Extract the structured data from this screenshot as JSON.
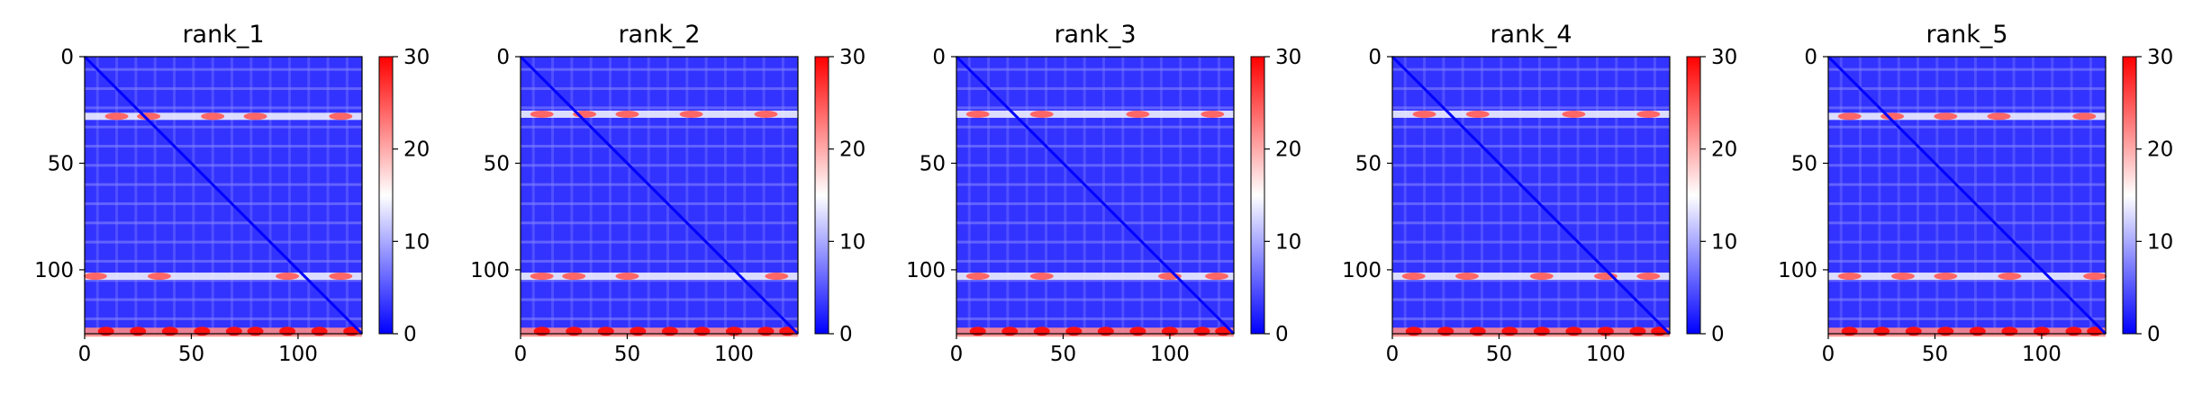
{
  "chart_data": [
    {
      "type": "heatmap",
      "title": "rank_1",
      "xlabel": "",
      "ylabel": "",
      "xlim": [
        0,
        130
      ],
      "ylim": [
        130,
        0
      ],
      "xticks": [
        0,
        50,
        100
      ],
      "yticks": [
        0,
        50,
        100
      ],
      "colorbar": {
        "range": [
          0,
          30
        ],
        "ticks": [
          0,
          10,
          20,
          30
        ],
        "colormap": "bwr"
      },
      "high_rows": [
        28,
        103,
        128
      ],
      "peaks": {
        "28": [
          15,
          30,
          60,
          80,
          120
        ],
        "103": [
          5,
          35,
          95,
          120
        ],
        "128": [
          10,
          25,
          40,
          55,
          70,
          80,
          95,
          110,
          125
        ]
      }
    },
    {
      "type": "heatmap",
      "title": "rank_2",
      "xlabel": "",
      "ylabel": "",
      "xlim": [
        0,
        130
      ],
      "ylim": [
        130,
        0
      ],
      "xticks": [
        0,
        50,
        100
      ],
      "yticks": [
        0,
        50,
        100
      ],
      "colorbar": {
        "range": [
          0,
          30
        ],
        "ticks": [
          0,
          10,
          20,
          30
        ],
        "colormap": "bwr"
      },
      "high_rows": [
        27,
        103,
        128
      ],
      "peaks": {
        "27": [
          10,
          30,
          50,
          80,
          115
        ],
        "103": [
          10,
          25,
          50,
          120
        ],
        "128": [
          10,
          25,
          40,
          55,
          70,
          85,
          100,
          115,
          125
        ]
      }
    },
    {
      "type": "heatmap",
      "title": "rank_3",
      "xlabel": "",
      "ylabel": "",
      "xlim": [
        0,
        130
      ],
      "ylim": [
        130,
        0
      ],
      "xticks": [
        0,
        50,
        100
      ],
      "yticks": [
        0,
        50,
        100
      ],
      "colorbar": {
        "range": [
          0,
          30
        ],
        "ticks": [
          0,
          10,
          20,
          30
        ],
        "colormap": "bwr"
      },
      "high_rows": [
        27,
        103,
        128
      ],
      "peaks": {
        "27": [
          10,
          40,
          85,
          120
        ],
        "103": [
          10,
          40,
          100,
          122
        ],
        "128": [
          10,
          25,
          40,
          55,
          70,
          85,
          100,
          115,
          125
        ]
      }
    },
    {
      "type": "heatmap",
      "title": "rank_4",
      "xlabel": "",
      "ylabel": "",
      "xlim": [
        0,
        130
      ],
      "ylim": [
        130,
        0
      ],
      "xticks": [
        0,
        50,
        100
      ],
      "yticks": [
        0,
        50,
        100
      ],
      "colorbar": {
        "range": [
          0,
          30
        ],
        "ticks": [
          0,
          10,
          20,
          30
        ],
        "colormap": "bwr"
      },
      "high_rows": [
        27,
        103,
        128
      ],
      "peaks": {
        "27": [
          15,
          40,
          85,
          120
        ],
        "103": [
          10,
          35,
          70,
          100,
          120
        ],
        "128": [
          10,
          25,
          40,
          55,
          70,
          85,
          100,
          115,
          125
        ]
      }
    },
    {
      "type": "heatmap",
      "title": "rank_5",
      "xlabel": "",
      "ylabel": "",
      "xlim": [
        0,
        130
      ],
      "ylim": [
        130,
        0
      ],
      "xticks": [
        0,
        50,
        100
      ],
      "yticks": [
        0,
        50,
        100
      ],
      "colorbar": {
        "range": [
          0,
          30
        ],
        "ticks": [
          0,
          10,
          20,
          30
        ],
        "colormap": "bwr"
      },
      "high_rows": [
        28,
        103,
        128
      ],
      "peaks": {
        "28": [
          10,
          30,
          55,
          80,
          120
        ],
        "103": [
          10,
          35,
          55,
          85,
          125
        ],
        "128": [
          10,
          25,
          40,
          55,
          70,
          85,
          100,
          115,
          125
        ]
      }
    }
  ]
}
